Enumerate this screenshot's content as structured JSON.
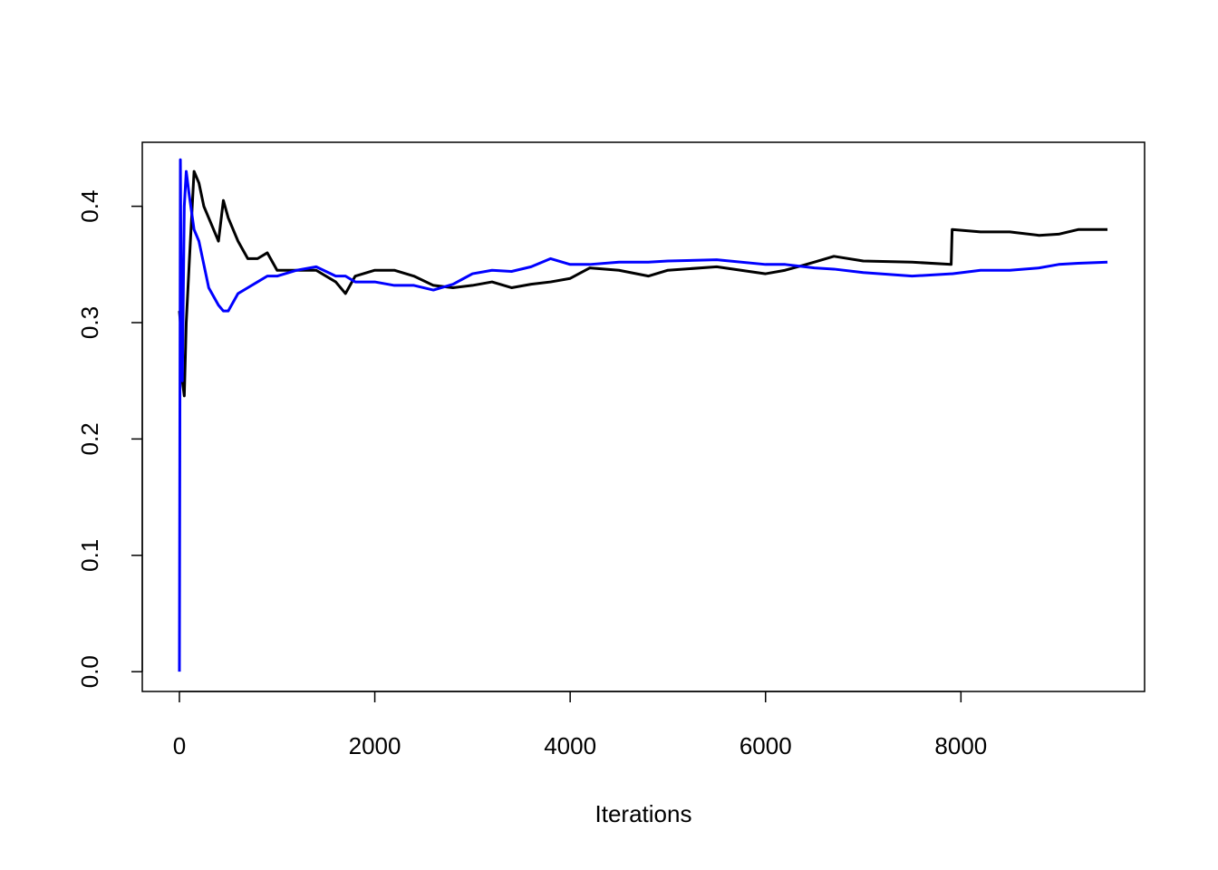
{
  "chart_data": {
    "type": "line",
    "x_label": "Iterations",
    "x": [
      0,
      10,
      20,
      30,
      50,
      70,
      100,
      150,
      200,
      250,
      300,
      400,
      450,
      500,
      600,
      700,
      800,
      900,
      1000,
      1200,
      1400,
      1600,
      1700,
      1800,
      2000,
      2200,
      2400,
      2600,
      2800,
      3000,
      3200,
      3400,
      3600,
      3800,
      4000,
      4200,
      4500,
      4800,
      5000,
      5500,
      6000,
      6200,
      6500,
      6700,
      7000,
      7500,
      7900,
      7910,
      8200,
      8500,
      8800,
      9000,
      9200,
      9500
    ],
    "series": [
      {
        "color": "#000000",
        "values": [
          0.31,
          0.3,
          0.28,
          0.25,
          0.237,
          0.3,
          0.35,
          0.43,
          0.42,
          0.4,
          0.39,
          0.37,
          0.405,
          0.39,
          0.37,
          0.355,
          0.355,
          0.36,
          0.345,
          0.345,
          0.345,
          0.335,
          0.325,
          0.34,
          0.345,
          0.345,
          0.34,
          0.332,
          0.33,
          0.332,
          0.335,
          0.33,
          0.333,
          0.335,
          0.338,
          0.347,
          0.345,
          0.34,
          0.345,
          0.348,
          0.342,
          0.345,
          0.352,
          0.357,
          0.353,
          0.352,
          0.35,
          0.38,
          0.378,
          0.378,
          0.375,
          0.376,
          0.38,
          0.38
        ]
      },
      {
        "color": "#0000ff",
        "values": [
          0,
          0.44,
          0.3,
          0.25,
          0.4,
          0.43,
          0.41,
          0.38,
          0.37,
          0.35,
          0.33,
          0.315,
          0.31,
          0.31,
          0.325,
          0.33,
          0.335,
          0.34,
          0.34,
          0.345,
          0.348,
          0.34,
          0.34,
          0.335,
          0.335,
          0.332,
          0.332,
          0.328,
          0.333,
          0.342,
          0.345,
          0.344,
          0.348,
          0.355,
          0.35,
          0.35,
          0.352,
          0.352,
          0.353,
          0.354,
          0.35,
          0.35,
          0.347,
          0.346,
          0.343,
          0.34,
          0.342,
          0.342,
          0.345,
          0.345,
          0.347,
          0.35,
          0.351,
          0.352
        ]
      }
    ],
    "xlim": [
      -380,
      9880
    ],
    "xticks": [
      0,
      2000,
      4000,
      6000,
      8000
    ],
    "ylim": [
      -0.017,
      0.455
    ],
    "yticks": [
      {
        "value": 0,
        "label": "0.0"
      },
      0.1,
      0.2,
      0.3,
      0.4
    ]
  }
}
